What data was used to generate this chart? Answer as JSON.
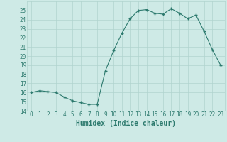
{
  "x": [
    0,
    1,
    2,
    3,
    4,
    5,
    6,
    7,
    8,
    9,
    10,
    11,
    12,
    13,
    14,
    15,
    16,
    17,
    18,
    19,
    20,
    21,
    22,
    23
  ],
  "y": [
    16.0,
    16.2,
    16.1,
    16.0,
    15.5,
    15.1,
    14.9,
    14.7,
    14.7,
    18.4,
    20.6,
    22.5,
    24.1,
    25.0,
    25.1,
    24.7,
    24.6,
    25.2,
    24.7,
    24.1,
    24.5,
    22.7,
    20.7,
    19.0
  ],
  "xlabel": "Humidex (Indice chaleur)",
  "bg_color": "#ceeae6",
  "grid_color": "#b0d4ce",
  "line_color": "#2d7a6e",
  "marker_color": "#2d7a6e",
  "ylim": [
    14,
    26
  ],
  "xlim": [
    -0.5,
    23.5
  ],
  "yticks": [
    14,
    15,
    16,
    17,
    18,
    19,
    20,
    21,
    22,
    23,
    24,
    25
  ],
  "xticks": [
    0,
    1,
    2,
    3,
    4,
    5,
    6,
    7,
    8,
    9,
    10,
    11,
    12,
    13,
    14,
    15,
    16,
    17,
    18,
    19,
    20,
    21,
    22,
    23
  ],
  "tick_fontsize": 5.5,
  "xlabel_fontsize": 7
}
